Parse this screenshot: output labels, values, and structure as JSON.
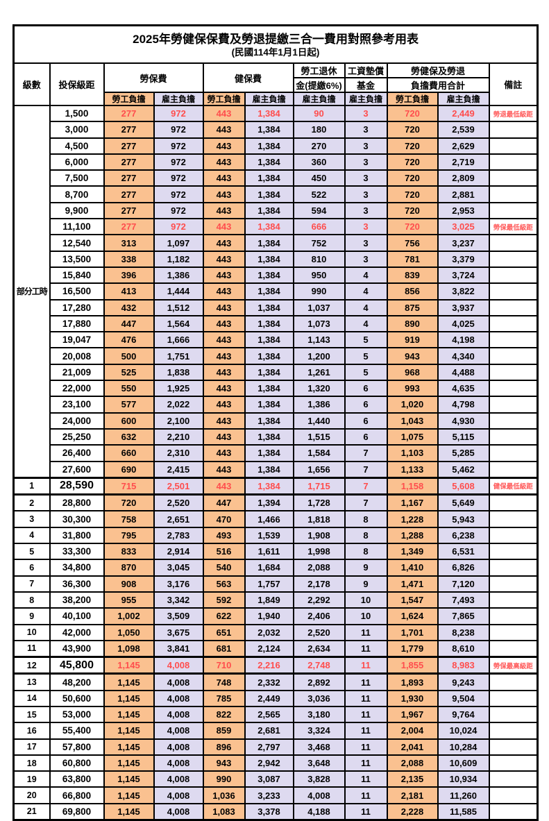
{
  "page": {
    "title": "2025年勞健保保費及勞退提繳三合一費用對照參考用表",
    "subtitle": "(民國114年1月1日起)"
  },
  "colors": {
    "employee_bg": "#FAC190",
    "employer_bg": "#DEDAF0",
    "highlight_red": "#FF4D4D",
    "border": "#000000"
  },
  "header": {
    "level": "級數",
    "bracket": "投保級距",
    "labor_insurance": "勞保費",
    "health_insurance": "健保費",
    "pension_line1": "勞工退休",
    "pension_line2": "金(提繳6%)",
    "wage_fund_line1": "工資墊償",
    "wage_fund_line2": "基金",
    "total_line1": "勞健保及勞退",
    "total_line2": "負擔費用合計",
    "employee": "勞工負擔",
    "employer": "雇主負擔",
    "remark": "備註"
  },
  "group_label": "部分工時",
  "group_rowspan": 23,
  "rows": [
    {
      "level": "",
      "bracket": "1,500",
      "values": [
        "277",
        "972",
        "443",
        "1,384",
        "90",
        "3",
        "720",
        "2,449"
      ],
      "remark": "勞退最低級距",
      "red": true,
      "big": false,
      "thick": false
    },
    {
      "level": "",
      "bracket": "3,000",
      "values": [
        "277",
        "972",
        "443",
        "1,384",
        "180",
        "3",
        "720",
        "2,539"
      ],
      "remark": "",
      "red": false,
      "big": false,
      "thick": false
    },
    {
      "level": "",
      "bracket": "4,500",
      "values": [
        "277",
        "972",
        "443",
        "1,384",
        "270",
        "3",
        "720",
        "2,629"
      ],
      "remark": "",
      "red": false,
      "big": false,
      "thick": false
    },
    {
      "level": "",
      "bracket": "6,000",
      "values": [
        "277",
        "972",
        "443",
        "1,384",
        "360",
        "3",
        "720",
        "2,719"
      ],
      "remark": "",
      "red": false,
      "big": false,
      "thick": false
    },
    {
      "level": "",
      "bracket": "7,500",
      "values": [
        "277",
        "972",
        "443",
        "1,384",
        "450",
        "3",
        "720",
        "2,809"
      ],
      "remark": "",
      "red": false,
      "big": false,
      "thick": false
    },
    {
      "level": "",
      "bracket": "8,700",
      "values": [
        "277",
        "972",
        "443",
        "1,384",
        "522",
        "3",
        "720",
        "2,881"
      ],
      "remark": "",
      "red": false,
      "big": false,
      "thick": false
    },
    {
      "level": "",
      "bracket": "9,900",
      "values": [
        "277",
        "972",
        "443",
        "1,384",
        "594",
        "3",
        "720",
        "2,953"
      ],
      "remark": "",
      "red": false,
      "big": false,
      "thick": false
    },
    {
      "level": "",
      "bracket": "11,100",
      "values": [
        "277",
        "972",
        "443",
        "1,384",
        "666",
        "3",
        "720",
        "3,025"
      ],
      "remark": "勞保最低級距",
      "red": true,
      "big": false,
      "thick": false
    },
    {
      "level": "",
      "bracket": "12,540",
      "values": [
        "313",
        "1,097",
        "443",
        "1,384",
        "752",
        "3",
        "756",
        "3,237"
      ],
      "remark": "",
      "red": false,
      "big": false,
      "thick": false
    },
    {
      "level": "",
      "bracket": "13,500",
      "values": [
        "338",
        "1,182",
        "443",
        "1,384",
        "810",
        "3",
        "781",
        "3,379"
      ],
      "remark": "",
      "red": false,
      "big": false,
      "thick": false
    },
    {
      "level": "",
      "bracket": "15,840",
      "values": [
        "396",
        "1,386",
        "443",
        "1,384",
        "950",
        "4",
        "839",
        "3,724"
      ],
      "remark": "",
      "red": false,
      "big": false,
      "thick": false
    },
    {
      "level": "",
      "bracket": "16,500",
      "values": [
        "413",
        "1,444",
        "443",
        "1,384",
        "990",
        "4",
        "856",
        "3,822"
      ],
      "remark": "",
      "red": false,
      "big": false,
      "thick": false
    },
    {
      "level": "",
      "bracket": "17,280",
      "values": [
        "432",
        "1,512",
        "443",
        "1,384",
        "1,037",
        "4",
        "875",
        "3,937"
      ],
      "remark": "",
      "red": false,
      "big": false,
      "thick": false
    },
    {
      "level": "",
      "bracket": "17,880",
      "values": [
        "447",
        "1,564",
        "443",
        "1,384",
        "1,073",
        "4",
        "890",
        "4,025"
      ],
      "remark": "",
      "red": false,
      "big": false,
      "thick": false
    },
    {
      "level": "",
      "bracket": "19,047",
      "values": [
        "476",
        "1,666",
        "443",
        "1,384",
        "1,143",
        "5",
        "919",
        "4,198"
      ],
      "remark": "",
      "red": false,
      "big": false,
      "thick": false
    },
    {
      "level": "",
      "bracket": "20,008",
      "values": [
        "500",
        "1,751",
        "443",
        "1,384",
        "1,200",
        "5",
        "943",
        "4,340"
      ],
      "remark": "",
      "red": false,
      "big": false,
      "thick": false
    },
    {
      "level": "",
      "bracket": "21,009",
      "values": [
        "525",
        "1,838",
        "443",
        "1,384",
        "1,261",
        "5",
        "968",
        "4,488"
      ],
      "remark": "",
      "red": false,
      "big": false,
      "thick": false
    },
    {
      "level": "",
      "bracket": "22,000",
      "values": [
        "550",
        "1,925",
        "443",
        "1,384",
        "1,320",
        "6",
        "993",
        "4,635"
      ],
      "remark": "",
      "red": false,
      "big": false,
      "thick": false
    },
    {
      "level": "",
      "bracket": "23,100",
      "values": [
        "577",
        "2,022",
        "443",
        "1,384",
        "1,386",
        "6",
        "1,020",
        "4,798"
      ],
      "remark": "",
      "red": false,
      "big": false,
      "thick": false
    },
    {
      "level": "",
      "bracket": "24,000",
      "values": [
        "600",
        "2,100",
        "443",
        "1,384",
        "1,440",
        "6",
        "1,043",
        "4,930"
      ],
      "remark": "",
      "red": false,
      "big": false,
      "thick": false
    },
    {
      "level": "",
      "bracket": "25,250",
      "values": [
        "632",
        "2,210",
        "443",
        "1,384",
        "1,515",
        "6",
        "1,075",
        "5,115"
      ],
      "remark": "",
      "red": false,
      "big": false,
      "thick": false
    },
    {
      "level": "",
      "bracket": "26,400",
      "values": [
        "660",
        "2,310",
        "443",
        "1,384",
        "1,584",
        "7",
        "1,103",
        "5,285"
      ],
      "remark": "",
      "red": false,
      "big": false,
      "thick": false
    },
    {
      "level": "",
      "bracket": "27,600",
      "values": [
        "690",
        "2,415",
        "443",
        "1,384",
        "1,656",
        "7",
        "1,133",
        "5,462"
      ],
      "remark": "",
      "red": false,
      "big": false,
      "thick": false
    },
    {
      "level": "1",
      "bracket": "28,590",
      "values": [
        "715",
        "2,501",
        "443",
        "1,384",
        "1,715",
        "7",
        "1,158",
        "5,608"
      ],
      "remark": "健保最低級距",
      "red": true,
      "big": true,
      "thick": true
    },
    {
      "level": "2",
      "bracket": "28,800",
      "values": [
        "720",
        "2,520",
        "447",
        "1,394",
        "1,728",
        "7",
        "1,167",
        "5,649"
      ],
      "remark": "",
      "red": false,
      "big": false,
      "thick": false
    },
    {
      "level": "3",
      "bracket": "30,300",
      "values": [
        "758",
        "2,651",
        "470",
        "1,466",
        "1,818",
        "8",
        "1,228",
        "5,943"
      ],
      "remark": "",
      "red": false,
      "big": false,
      "thick": false
    },
    {
      "level": "4",
      "bracket": "31,800",
      "values": [
        "795",
        "2,783",
        "493",
        "1,539",
        "1,908",
        "8",
        "1,288",
        "6,238"
      ],
      "remark": "",
      "red": false,
      "big": false,
      "thick": false
    },
    {
      "level": "5",
      "bracket": "33,300",
      "values": [
        "833",
        "2,914",
        "516",
        "1,611",
        "1,998",
        "8",
        "1,349",
        "6,531"
      ],
      "remark": "",
      "red": false,
      "big": false,
      "thick": false
    },
    {
      "level": "6",
      "bracket": "34,800",
      "values": [
        "870",
        "3,045",
        "540",
        "1,684",
        "2,088",
        "9",
        "1,410",
        "6,826"
      ],
      "remark": "",
      "red": false,
      "big": false,
      "thick": false
    },
    {
      "level": "7",
      "bracket": "36,300",
      "values": [
        "908",
        "3,176",
        "563",
        "1,757",
        "2,178",
        "9",
        "1,471",
        "7,120"
      ],
      "remark": "",
      "red": false,
      "big": false,
      "thick": false
    },
    {
      "level": "8",
      "bracket": "38,200",
      "values": [
        "955",
        "3,342",
        "592",
        "1,849",
        "2,292",
        "10",
        "1,547",
        "7,493"
      ],
      "remark": "",
      "red": false,
      "big": false,
      "thick": false
    },
    {
      "level": "9",
      "bracket": "40,100",
      "values": [
        "1,002",
        "3,509",
        "622",
        "1,940",
        "2,406",
        "10",
        "1,624",
        "7,865"
      ],
      "remark": "",
      "red": false,
      "big": false,
      "thick": false
    },
    {
      "level": "10",
      "bracket": "42,000",
      "values": [
        "1,050",
        "3,675",
        "651",
        "2,032",
        "2,520",
        "11",
        "1,701",
        "8,238"
      ],
      "remark": "",
      "red": false,
      "big": false,
      "thick": false
    },
    {
      "level": "11",
      "bracket": "43,900",
      "values": [
        "1,098",
        "3,841",
        "681",
        "2,124",
        "2,634",
        "11",
        "1,779",
        "8,610"
      ],
      "remark": "",
      "red": false,
      "big": false,
      "thick": false
    },
    {
      "level": "12",
      "bracket": "45,800",
      "values": [
        "1,145",
        "4,008",
        "710",
        "2,216",
        "2,748",
        "11",
        "1,855",
        "8,983"
      ],
      "remark": "勞保最高級距",
      "red": true,
      "big": true,
      "thick": true
    },
    {
      "level": "13",
      "bracket": "48,200",
      "values": [
        "1,145",
        "4,008",
        "748",
        "2,332",
        "2,892",
        "11",
        "1,893",
        "9,243"
      ],
      "remark": "",
      "red": false,
      "big": false,
      "thick": false
    },
    {
      "level": "14",
      "bracket": "50,600",
      "values": [
        "1,145",
        "4,008",
        "785",
        "2,449",
        "3,036",
        "11",
        "1,930",
        "9,504"
      ],
      "remark": "",
      "red": false,
      "big": false,
      "thick": false
    },
    {
      "level": "15",
      "bracket": "53,000",
      "values": [
        "1,145",
        "4,008",
        "822",
        "2,565",
        "3,180",
        "11",
        "1,967",
        "9,764"
      ],
      "remark": "",
      "red": false,
      "big": false,
      "thick": false
    },
    {
      "level": "16",
      "bracket": "55,400",
      "values": [
        "1,145",
        "4,008",
        "859",
        "2,681",
        "3,324",
        "11",
        "2,004",
        "10,024"
      ],
      "remark": "",
      "red": false,
      "big": false,
      "thick": false
    },
    {
      "level": "17",
      "bracket": "57,800",
      "values": [
        "1,145",
        "4,008",
        "896",
        "2,797",
        "3,468",
        "11",
        "2,041",
        "10,284"
      ],
      "remark": "",
      "red": false,
      "big": false,
      "thick": false
    },
    {
      "level": "18",
      "bracket": "60,800",
      "values": [
        "1,145",
        "4,008",
        "943",
        "2,942",
        "3,648",
        "11",
        "2,088",
        "10,609"
      ],
      "remark": "",
      "red": false,
      "big": false,
      "thick": false
    },
    {
      "level": "19",
      "bracket": "63,800",
      "values": [
        "1,145",
        "4,008",
        "990",
        "3,087",
        "3,828",
        "11",
        "2,135",
        "10,934"
      ],
      "remark": "",
      "red": false,
      "big": false,
      "thick": false
    },
    {
      "level": "20",
      "bracket": "66,800",
      "values": [
        "1,145",
        "4,008",
        "1,036",
        "3,233",
        "4,008",
        "11",
        "2,181",
        "11,260"
      ],
      "remark": "",
      "red": false,
      "big": false,
      "thick": false
    },
    {
      "level": "21",
      "bracket": "69,800",
      "values": [
        "1,145",
        "4,008",
        "1,083",
        "3,378",
        "4,188",
        "11",
        "2,228",
        "11,585"
      ],
      "remark": "",
      "red": false,
      "big": false,
      "thick": false
    }
  ]
}
